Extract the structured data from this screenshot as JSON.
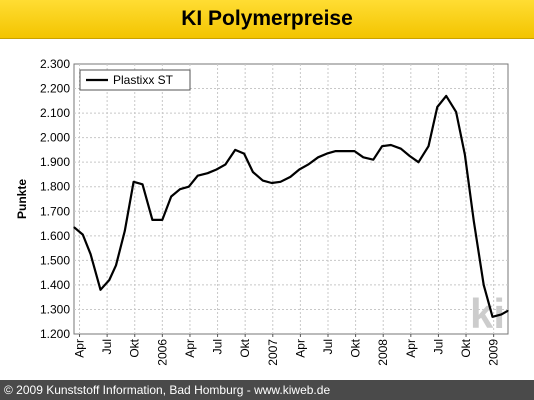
{
  "header": {
    "title": "KI Polymerpreise"
  },
  "footer": {
    "text": "© 2009 Kunststoff Information, Bad Homburg - www.kiweb.de"
  },
  "watermark": {
    "text": "ki",
    "color": "#cccccc"
  },
  "colors": {
    "title_bg": "#f5c800",
    "footer_bg": "#4a4a4a",
    "line": "#000000",
    "grid": "#bdbdbd"
  },
  "chart_data": {
    "type": "line",
    "title": "KI Polymerpreise",
    "xlabel": "",
    "ylabel": "Punkte",
    "ylim": [
      1200,
      2300
    ],
    "xlim": [
      2005.2,
      2009.13
    ],
    "yticks": [
      {
        "value": 1200,
        "label": "1.200"
      },
      {
        "value": 1300,
        "label": "1.300"
      },
      {
        "value": 1400,
        "label": "1.400"
      },
      {
        "value": 1500,
        "label": "1.500"
      },
      {
        "value": 1600,
        "label": "1.600"
      },
      {
        "value": 1700,
        "label": "1.700"
      },
      {
        "value": 1800,
        "label": "1.800"
      },
      {
        "value": 1900,
        "label": "1.900"
      },
      {
        "value": 2000,
        "label": "2.000"
      },
      {
        "value": 2100,
        "label": "2.100"
      },
      {
        "value": 2200,
        "label": "2.200"
      },
      {
        "value": 2300,
        "label": "2.300"
      }
    ],
    "xticks": [
      {
        "value": 2005.25,
        "label": "Apr"
      },
      {
        "value": 2005.5,
        "label": "Jul"
      },
      {
        "value": 2005.75,
        "label": "Okt"
      },
      {
        "value": 2006.0,
        "label": "2006"
      },
      {
        "value": 2006.25,
        "label": "Apr"
      },
      {
        "value": 2006.5,
        "label": "Jul"
      },
      {
        "value": 2006.75,
        "label": "Okt"
      },
      {
        "value": 2007.0,
        "label": "2007"
      },
      {
        "value": 2007.25,
        "label": "Apr"
      },
      {
        "value": 2007.5,
        "label": "Jul"
      },
      {
        "value": 2007.75,
        "label": "Okt"
      },
      {
        "value": 2008.0,
        "label": "2008"
      },
      {
        "value": 2008.25,
        "label": "Apr"
      },
      {
        "value": 2008.5,
        "label": "Jul"
      },
      {
        "value": 2008.75,
        "label": "Okt"
      },
      {
        "value": 2009.0,
        "label": "2009"
      }
    ],
    "grid": true,
    "legend": "top-left",
    "series": [
      {
        "name": "Plastixx ST",
        "color": "#000000",
        "x": [
          2005.2,
          2005.28,
          2005.35,
          2005.44,
          2005.52,
          2005.58,
          2005.66,
          2005.74,
          2005.82,
          2005.91,
          2006.0,
          2006.08,
          2006.16,
          2006.24,
          2006.32,
          2006.41,
          2006.49,
          2006.57,
          2006.66,
          2006.74,
          2006.82,
          2006.91,
          2006.99,
          2007.07,
          2007.16,
          2007.24,
          2007.32,
          2007.41,
          2007.49,
          2007.57,
          2007.66,
          2007.74,
          2007.82,
          2007.91,
          2007.99,
          2008.07,
          2008.16,
          2008.24,
          2008.32,
          2008.41,
          2008.49,
          2008.57,
          2008.66,
          2008.74,
          2008.82,
          2008.91,
          2008.99,
          2009.07,
          2009.13
        ],
        "values": [
          1635,
          1605,
          1525,
          1380,
          1420,
          1480,
          1620,
          1820,
          1810,
          1665,
          1665,
          1760,
          1790,
          1800,
          1845,
          1855,
          1870,
          1890,
          1950,
          1935,
          1860,
          1825,
          1815,
          1820,
          1840,
          1870,
          1890,
          1920,
          1935,
          1945,
          1945,
          1945,
          1920,
          1910,
          1965,
          1970,
          1955,
          1925,
          1900,
          1965,
          2125,
          2170,
          2105,
          1930,
          1660,
          1400,
          1270,
          1280,
          1295
        ]
      }
    ]
  }
}
